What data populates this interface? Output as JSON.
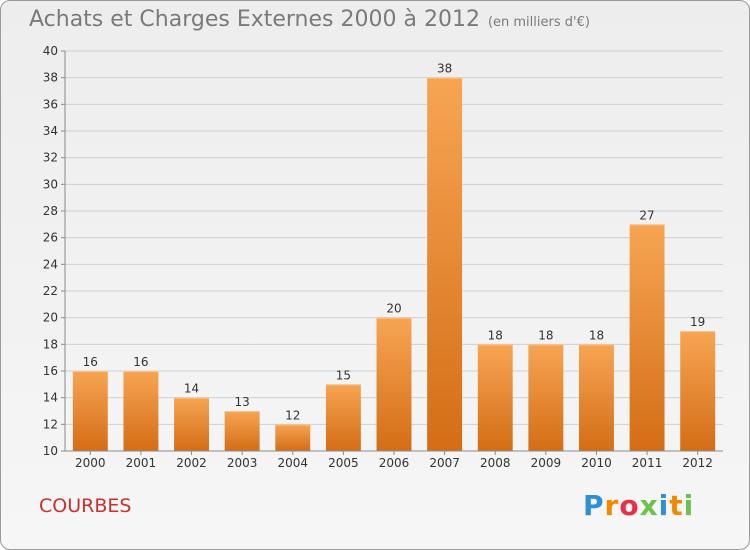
{
  "title": "Achats et Charges Externes 2000 à 2012",
  "subtitle": "(en milliers d'€)",
  "commune": "COURBES",
  "logo": {
    "text": "Proxiti",
    "letters": [
      "P",
      "r",
      "o",
      "x",
      "i",
      "t",
      "i"
    ],
    "colors": [
      "#2f8fd6",
      "#f08a00",
      "#e8304a",
      "#6cc24a",
      "#2f8fd6",
      "#f08a00",
      "#6cc24a"
    ]
  },
  "colors": {
    "bar_top": "#f7a553",
    "bar_bottom": "#d46d16",
    "grid": "#cfcfcf",
    "axis": "#8a8a8a",
    "commune": "#c8322c"
  },
  "chart_data": {
    "type": "bar",
    "title": "Achats et Charges Externes 2000 à 2012",
    "subtitle": "(en milliers d'€)",
    "categories": [
      "2000",
      "2001",
      "2002",
      "2003",
      "2004",
      "2005",
      "2006",
      "2007",
      "2008",
      "2009",
      "2010",
      "2011",
      "2012"
    ],
    "values": [
      16,
      16,
      14,
      13,
      12,
      15,
      20,
      38,
      18,
      18,
      18,
      27,
      19
    ],
    "ylim": [
      10,
      40
    ],
    "yticks": [
      10,
      12,
      14,
      16,
      18,
      20,
      22,
      24,
      26,
      28,
      30,
      32,
      34,
      36,
      38,
      40
    ],
    "grid": true,
    "xlabel": "",
    "ylabel": ""
  }
}
